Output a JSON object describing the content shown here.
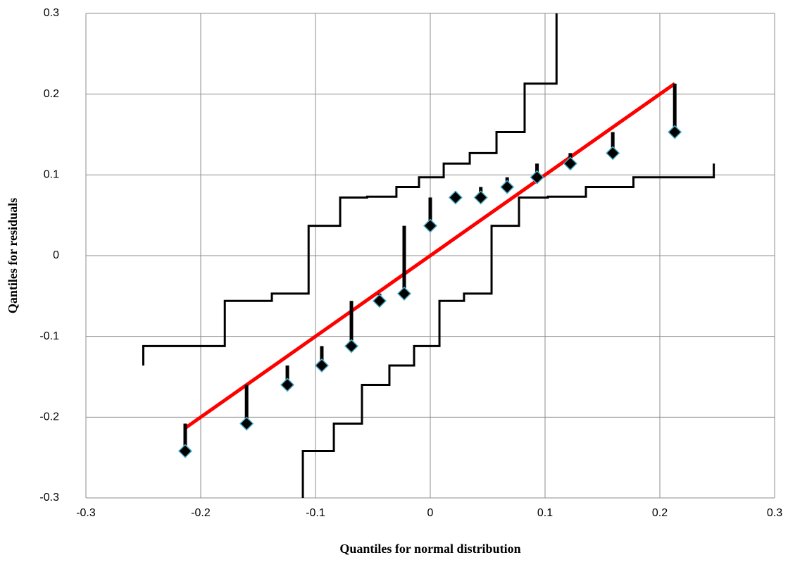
{
  "chart_data": {
    "type": "scatter",
    "xlabel": "Quantiles for normal distribution",
    "ylabel": "Qantiles for residuals",
    "xlim": [
      -0.3,
      0.3
    ],
    "ylim": [
      -0.3,
      0.3
    ],
    "xticks": [
      -0.3,
      -0.2,
      -0.1,
      0,
      0.1,
      0.2,
      0.3
    ],
    "yticks": [
      -0.3,
      -0.2,
      -0.1,
      0,
      0.1,
      0.2,
      0.3
    ],
    "grid": true,
    "series": [
      {
        "style": "line",
        "color": "#ff0000",
        "x": [
          -0.213,
          0.213
        ],
        "values": [
          -0.213,
          0.213
        ]
      },
      {
        "style": "marker",
        "color": "#000000",
        "edge_color": "#4bacc6",
        "x": [
          -0.2135,
          -0.16,
          -0.1245,
          -0.0945,
          -0.0687,
          -0.0442,
          -0.0227,
          0,
          0.022,
          0.044,
          0.067,
          0.093,
          0.122,
          0.159,
          0.213
        ],
        "values": [
          -0.242,
          -0.208,
          -0.16,
          -0.136,
          -0.112,
          -0.056,
          -0.047,
          0.037,
          0.072,
          0.072,
          0.085,
          0.097,
          0.114,
          0.127,
          0.153
        ]
      },
      {
        "style": "stem",
        "color": "#000000",
        "base_series": 1,
        "values": [
          -0.208,
          -0.16,
          -0.136,
          -0.112,
          -0.056,
          -0.047,
          0.037,
          0.072,
          0.072,
          0.085,
          0.097,
          0.114,
          0.127,
          0.153,
          0.213
        ]
      },
      {
        "style": "line",
        "color": "#000000",
        "x": [
          -0.25,
          -0.25,
          -0.179,
          -0.179,
          -0.138,
          -0.138,
          -0.106,
          -0.106,
          -0.0785,
          -0.0785,
          -0.055,
          -0.055,
          -0.0295,
          -0.0295,
          -0.0098,
          -0.0098,
          0.0117,
          0.0117,
          0.0344,
          0.0344,
          0.0577,
          0.0577,
          0.0822,
          0.0822,
          0.11,
          0.11
        ],
        "values": [
          -0.136,
          -0.112,
          -0.112,
          -0.056,
          -0.056,
          -0.047,
          -0.047,
          0.037,
          0.037,
          0.072,
          0.072,
          0.073,
          0.073,
          0.085,
          0.085,
          0.097,
          0.097,
          0.114,
          0.114,
          0.127,
          0.127,
          0.153,
          0.153,
          0.213,
          0.213,
          0.3
        ]
      },
      {
        "style": "line",
        "color": "#000000",
        "x": [
          -0.111,
          -0.111,
          -0.084,
          -0.084,
          -0.0595,
          -0.0595,
          -0.0356,
          -0.0356,
          -0.0141,
          -0.0141,
          0.008,
          0.008,
          0.0294,
          0.0294,
          0.0534,
          0.0534,
          0.0773,
          0.0773,
          0.1025,
          0.1025,
          0.1356,
          0.1356,
          0.177,
          0.177,
          0.247,
          0.247
        ],
        "values": [
          -0.3,
          -0.242,
          -0.242,
          -0.208,
          -0.208,
          -0.16,
          -0.16,
          -0.136,
          -0.136,
          -0.112,
          -0.112,
          -0.056,
          -0.056,
          -0.047,
          -0.047,
          0.037,
          0.037,
          0.072,
          0.072,
          0.073,
          0.073,
          0.085,
          0.085,
          0.097,
          0.097,
          0.114
        ]
      }
    ]
  }
}
